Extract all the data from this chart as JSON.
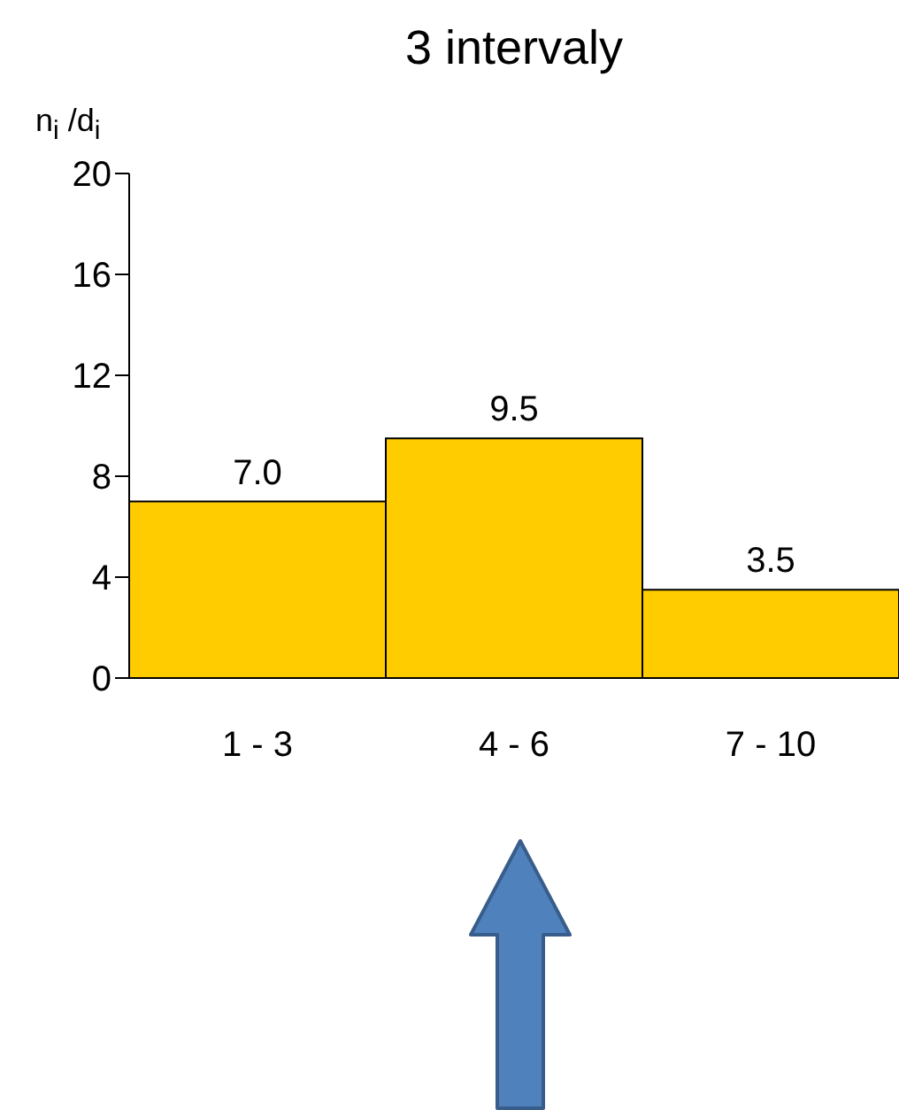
{
  "chart_data": {
    "type": "bar",
    "title": "3 intervaly",
    "ylabel": "n$_{i}$ /d$_{i}$",
    "categories": [
      "1 - 3",
      "4 - 6",
      "7 - 10"
    ],
    "values": [
      7.0,
      9.5,
      3.5
    ],
    "value_labels": [
      "7.0",
      "9.5",
      "3.5"
    ],
    "color": "#ffcc00",
    "ylim": [
      0,
      20
    ],
    "yticks": [
      0,
      4,
      8,
      12,
      16,
      20
    ]
  }
}
